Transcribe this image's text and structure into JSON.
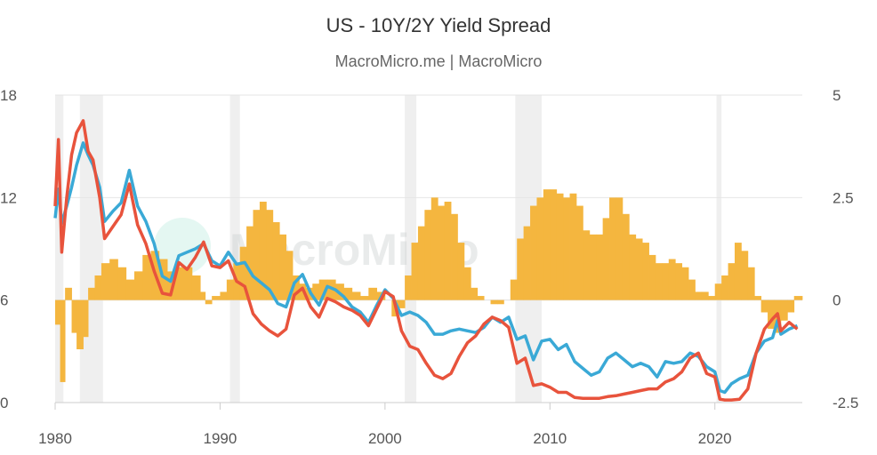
{
  "header": {
    "title": "US - 10Y/2Y Yield Spread",
    "subtitle": "MacroMicro.me | MacroMicro"
  },
  "watermark": "MacroMicro",
  "chart_data": {
    "type": "line",
    "title": "US - 10Y/2Y Yield Spread",
    "subtitle": "MacroMicro.me | MacroMicro",
    "x_range": [
      1980,
      2025.3
    ],
    "x_ticks": [
      1980,
      1990,
      2000,
      2010,
      2020
    ],
    "y_left": {
      "range": [
        0,
        18
      ],
      "ticks": [
        0,
        6,
        12,
        18
      ]
    },
    "y_right": {
      "range": [
        -2.5,
        5
      ],
      "ticks": [
        -2.5,
        0,
        2.5,
        5
      ],
      "tick_labels": [
        "-2.5",
        "0",
        "2.5",
        "5"
      ]
    },
    "grid": true,
    "legend": "none",
    "colors": {
      "ten_year": "#3aa9d6",
      "two_year": "#e8533c",
      "spread": "#f4b63f",
      "recession": "#efefef"
    },
    "recessions": [
      [
        1980.0,
        1980.5
      ],
      [
        1981.5,
        1982.9
      ],
      [
        1990.6,
        1991.2
      ],
      [
        2001.2,
        2001.9
      ],
      [
        2007.9,
        2009.5
      ],
      [
        2020.1,
        2020.4
      ]
    ],
    "series": [
      {
        "role": "ten_year",
        "axis": "left",
        "x": [
          1980.0,
          1980.2,
          1980.4,
          1980.7,
          1981.0,
          1981.3,
          1981.7,
          1982.0,
          1982.3,
          1982.7,
          1983.0,
          1983.5,
          1984.0,
          1984.5,
          1985.0,
          1985.5,
          1986.0,
          1986.5,
          1987.0,
          1987.5,
          1988.0,
          1988.5,
          1989.0,
          1989.5,
          1990.0,
          1990.5,
          1991.0,
          1991.5,
          1992.0,
          1992.5,
          1993.0,
          1993.5,
          1994.0,
          1994.5,
          1995.0,
          1995.5,
          1996.0,
          1996.5,
          1997.0,
          1997.5,
          1998.0,
          1998.5,
          1999.0,
          1999.5,
          2000.0,
          2000.5,
          2001.0,
          2001.5,
          2002.0,
          2002.5,
          2003.0,
          2003.5,
          2004.0,
          2004.5,
          2005.0,
          2005.5,
          2006.0,
          2006.5,
          2007.0,
          2007.5,
          2008.0,
          2008.5,
          2009.0,
          2009.5,
          2010.0,
          2010.5,
          2011.0,
          2011.5,
          2012.0,
          2012.5,
          2013.0,
          2013.5,
          2014.0,
          2014.5,
          2015.0,
          2015.5,
          2016.0,
          2016.5,
          2017.0,
          2017.5,
          2018.0,
          2018.5,
          2019.0,
          2019.5,
          2020.0,
          2020.3,
          2020.6,
          2021.0,
          2021.5,
          2022.0,
          2022.5,
          2023.0,
          2023.5,
          2023.8,
          2024.0,
          2024.5,
          2025.0
        ],
        "values": [
          10.8,
          12.5,
          10.5,
          11.5,
          12.6,
          13.9,
          15.2,
          14.5,
          13.9,
          12.6,
          10.6,
          11.2,
          11.7,
          13.6,
          11.5,
          10.6,
          9.3,
          7.4,
          7.1,
          8.6,
          8.8,
          9.0,
          9.3,
          8.3,
          8.0,
          8.8,
          8.1,
          8.2,
          7.4,
          7.0,
          6.6,
          5.8,
          5.6,
          7.0,
          7.5,
          6.4,
          5.7,
          6.8,
          6.6,
          6.2,
          5.6,
          5.3,
          4.7,
          5.7,
          6.6,
          6.1,
          5.1,
          5.3,
          5.1,
          4.7,
          4.0,
          4.0,
          4.2,
          4.3,
          4.2,
          4.1,
          4.4,
          5.0,
          4.7,
          5.0,
          3.7,
          3.9,
          2.5,
          3.6,
          3.7,
          3.1,
          3.4,
          2.4,
          2.0,
          1.6,
          1.8,
          2.6,
          2.9,
          2.5,
          2.1,
          2.3,
          2.1,
          1.5,
          2.4,
          2.3,
          2.4,
          2.9,
          2.7,
          2.1,
          1.8,
          0.7,
          0.6,
          1.1,
          1.4,
          1.6,
          2.9,
          3.6,
          3.8,
          4.8,
          4.0,
          4.3,
          4.5
        ]
      },
      {
        "role": "two_year",
        "axis": "left",
        "x": [
          1980.0,
          1980.2,
          1980.4,
          1980.7,
          1981.0,
          1981.3,
          1981.7,
          1982.0,
          1982.3,
          1982.7,
          1983.0,
          1983.5,
          1984.0,
          1984.5,
          1985.0,
          1985.5,
          1986.0,
          1986.5,
          1987.0,
          1987.5,
          1988.0,
          1988.5,
          1989.0,
          1989.5,
          1990.0,
          1990.5,
          1991.0,
          1991.5,
          1992.0,
          1992.5,
          1993.0,
          1993.5,
          1994.0,
          1994.5,
          1995.0,
          1995.5,
          1996.0,
          1996.5,
          1997.0,
          1997.5,
          1998.0,
          1998.5,
          1999.0,
          1999.5,
          2000.0,
          2000.5,
          2001.0,
          2001.5,
          2002.0,
          2002.5,
          2003.0,
          2003.5,
          2004.0,
          2004.5,
          2005.0,
          2005.5,
          2006.0,
          2006.5,
          2007.0,
          2007.5,
          2008.0,
          2008.5,
          2009.0,
          2009.5,
          2010.0,
          2010.5,
          2011.0,
          2011.5,
          2012.0,
          2012.5,
          2013.0,
          2013.5,
          2014.0,
          2014.5,
          2015.0,
          2015.5,
          2016.0,
          2016.5,
          2017.0,
          2017.5,
          2018.0,
          2018.5,
          2019.0,
          2019.5,
          2020.0,
          2020.3,
          2020.6,
          2021.0,
          2021.5,
          2022.0,
          2022.5,
          2023.0,
          2023.5,
          2023.8,
          2024.0,
          2024.5,
          2025.0
        ],
        "values": [
          11.5,
          15.4,
          8.8,
          12.0,
          14.5,
          15.8,
          16.5,
          14.7,
          14.2,
          12.0,
          9.6,
          10.3,
          11.0,
          12.8,
          10.4,
          9.3,
          7.7,
          6.4,
          6.3,
          8.2,
          7.8,
          8.5,
          9.4,
          8.0,
          7.9,
          8.3,
          7.1,
          6.8,
          5.2,
          4.6,
          4.2,
          3.9,
          4.3,
          6.3,
          6.7,
          5.6,
          5.0,
          6.1,
          5.9,
          5.6,
          5.4,
          5.1,
          4.5,
          5.5,
          6.5,
          6.2,
          4.2,
          3.3,
          3.1,
          2.3,
          1.6,
          1.4,
          1.7,
          2.7,
          3.5,
          3.9,
          4.6,
          5.0,
          4.8,
          4.4,
          2.3,
          2.6,
          1.0,
          1.1,
          0.9,
          0.6,
          0.6,
          0.3,
          0.25,
          0.25,
          0.25,
          0.35,
          0.4,
          0.5,
          0.6,
          0.7,
          0.8,
          0.8,
          1.2,
          1.4,
          1.8,
          2.6,
          2.9,
          1.7,
          1.5,
          0.2,
          0.15,
          0.15,
          0.2,
          0.8,
          2.9,
          4.3,
          4.9,
          5.2,
          4.2,
          4.7,
          4.3
        ]
      },
      {
        "role": "spread",
        "axis": "right",
        "type": "bar",
        "x": [
          1980.0,
          1980.3,
          1980.6,
          1981.0,
          1981.3,
          1981.7,
          1982.0,
          1982.4,
          1982.8,
          1983.3,
          1983.8,
          1984.3,
          1984.8,
          1985.3,
          1985.8,
          1986.3,
          1986.8,
          1987.3,
          1987.8,
          1988.3,
          1988.8,
          1989.1,
          1989.5,
          1990.0,
          1990.4,
          1990.8,
          1991.2,
          1991.6,
          1992.0,
          1992.4,
          1992.8,
          1993.2,
          1993.6,
          1994.0,
          1994.4,
          1994.8,
          1995.2,
          1995.6,
          1996.0,
          1996.5,
          1997.0,
          1997.5,
          1998.0,
          1998.5,
          1999.0,
          1999.5,
          2000.0,
          2000.4,
          2000.8,
          2001.2,
          2001.6,
          2002.0,
          2002.4,
          2002.8,
          2003.2,
          2003.6,
          2004.0,
          2004.4,
          2004.8,
          2005.2,
          2005.6,
          2006.0,
          2006.4,
          2006.8,
          2007.2,
          2007.6,
          2008.0,
          2008.4,
          2008.8,
          2009.2,
          2009.6,
          2010.0,
          2010.4,
          2010.8,
          2011.2,
          2011.6,
          2012.0,
          2012.4,
          2012.8,
          2013.2,
          2013.6,
          2014.0,
          2014.4,
          2014.8,
          2015.2,
          2015.6,
          2016.0,
          2016.4,
          2016.8,
          2017.2,
          2017.6,
          2018.0,
          2018.4,
          2018.8,
          2019.2,
          2019.6,
          2020.0,
          2020.4,
          2020.8,
          2021.2,
          2021.6,
          2022.0,
          2022.4,
          2022.8,
          2023.2,
          2023.6,
          2024.0,
          2024.4,
          2024.8,
          2025.2
        ],
        "values": [
          -0.6,
          -2.0,
          0.3,
          -0.8,
          -1.2,
          -0.9,
          0.3,
          0.6,
          0.9,
          1.0,
          0.8,
          0.5,
          0.7,
          1.1,
          1.2,
          1.0,
          0.7,
          0.8,
          0.8,
          0.6,
          0.2,
          -0.1,
          0.1,
          0.2,
          0.5,
          0.9,
          1.3,
          1.8,
          2.2,
          2.4,
          2.2,
          1.9,
          1.6,
          1.2,
          0.6,
          0.4,
          0.3,
          0.4,
          0.5,
          0.5,
          0.4,
          0.3,
          0.2,
          0.1,
          0.3,
          0.2,
          0.0,
          -0.4,
          -0.2,
          0.6,
          1.4,
          1.8,
          2.2,
          2.5,
          2.3,
          2.4,
          2.1,
          1.4,
          0.8,
          0.3,
          0.1,
          0.0,
          -0.1,
          -0.1,
          0.0,
          0.5,
          1.5,
          1.8,
          2.3,
          2.5,
          2.7,
          2.7,
          2.6,
          2.5,
          2.6,
          2.3,
          1.7,
          1.6,
          1.6,
          2.0,
          2.5,
          2.5,
          2.1,
          1.6,
          1.5,
          1.4,
          1.1,
          0.9,
          0.9,
          1.0,
          0.9,
          0.8,
          0.5,
          0.2,
          0.2,
          0.1,
          0.4,
          0.6,
          0.9,
          1.4,
          1.2,
          0.8,
          0.1,
          -0.3,
          -0.7,
          -0.8,
          -0.5,
          -0.3,
          0.1,
          0.1
        ]
      }
    ]
  }
}
